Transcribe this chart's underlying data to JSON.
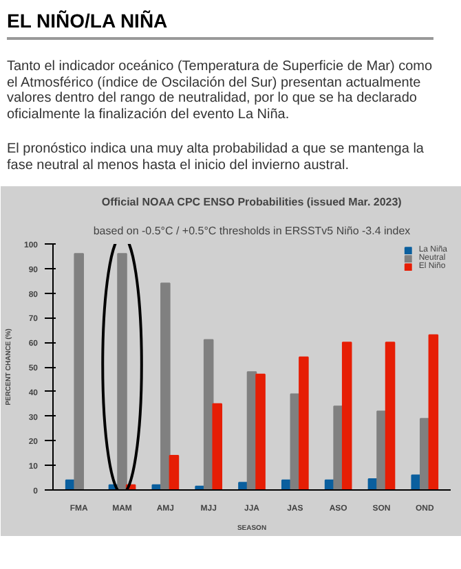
{
  "chart_data": {
    "type": "bar",
    "title": "Official NOAA CPC ENSO Probabilities (issued Mar. 2023)",
    "subtitle": "based on -0.5°C / +0.5°C thresholds in ERSSTv5 Niño -3.4 index",
    "annotations": [
      "EL NIÑO/LA NIÑA",
      "Tanto el indicador oceánico (Temperatura de Superficie de Mar) como el Atmosférico (índice de Oscilación del Sur) presentan actualmente valores dentro del rango de neutralidad, por lo que se ha declarado oficialmente la finalización del evento La Niña.",
      "El pronóstico indica una muy alta probabilidad  a que se mantenga la fase neutral al menos hasta el inicio del invierno austral."
    ],
    "xlabel": "SEASON",
    "ylabel": "PERCENT CHANCE (%)",
    "categories": [
      "FMA",
      "MAM",
      "AMJ",
      "MJJ",
      "JJA",
      "JAS",
      "ASO",
      "SON",
      "OND"
    ],
    "series": [
      {
        "name": "La Niña",
        "color": "#0a5f9e",
        "values": [
          4,
          2,
          2,
          1.5,
          3,
          4,
          4,
          4.5,
          6
        ]
      },
      {
        "name": "Neutral",
        "color": "#808080",
        "values": [
          96,
          96,
          84,
          61,
          48,
          39,
          34,
          32,
          29
        ]
      },
      {
        "name": "El Niño",
        "color": "#e61e05",
        "values": [
          0,
          2,
          14,
          35,
          47,
          54,
          60,
          60,
          63
        ]
      }
    ],
    "ylim": [
      0,
      100
    ],
    "yticks": [
      0,
      10,
      20,
      30,
      40,
      50,
      60,
      70,
      80,
      90,
      100
    ],
    "grid": false,
    "legend": "top right"
  }
}
